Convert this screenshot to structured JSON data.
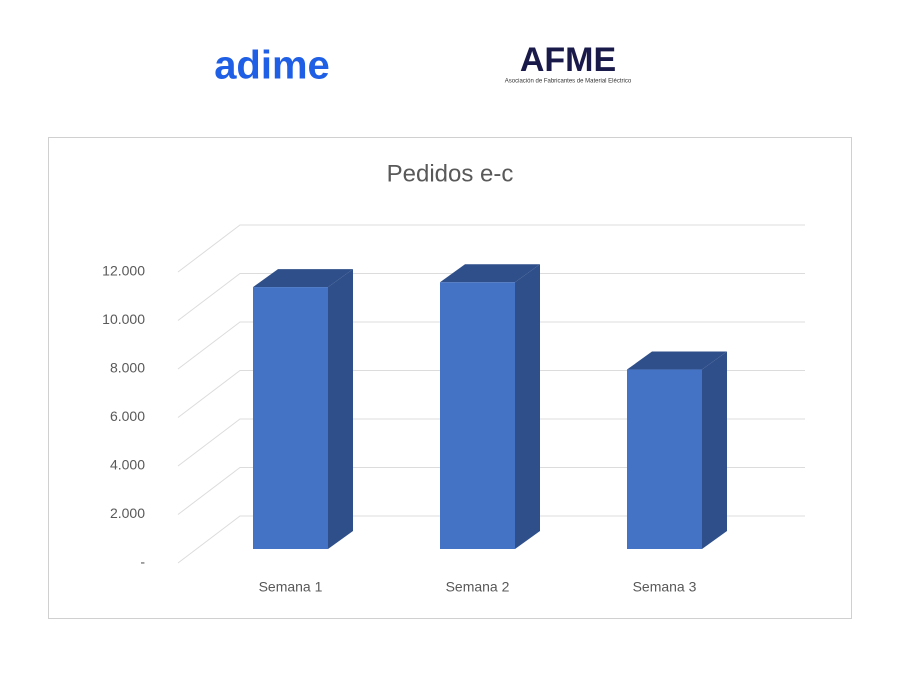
{
  "logos": {
    "left": "adime",
    "right": "AFME",
    "right_caption": "Asociación de Fabricantes de Material Eléctrico"
  },
  "chart_data": {
    "type": "bar3d",
    "title": "Pedidos e-c",
    "categories": [
      "Semana 1",
      "Semana 2",
      "Semana 3"
    ],
    "values": [
      10800,
      11000,
      7400
    ],
    "color": "#4472c4",
    "side_color": "#2f4f8a",
    "ylim": [
      0,
      12000
    ],
    "yticks": [
      {
        "value": 0,
        "label": "-"
      },
      {
        "value": 2000,
        "label": "2.000"
      },
      {
        "value": 4000,
        "label": "4.000"
      },
      {
        "value": 6000,
        "label": "6.000"
      },
      {
        "value": 8000,
        "label": "8.000"
      },
      {
        "value": 10000,
        "label": "10.000"
      },
      {
        "value": 12000,
        "label": "12.000"
      }
    ],
    "grid": true
  }
}
